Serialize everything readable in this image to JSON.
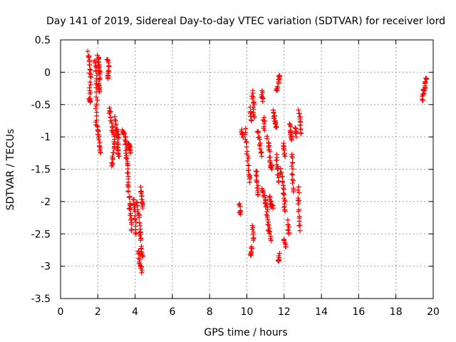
{
  "chart_data": {
    "type": "scatter",
    "title": "Day 141 of 2019, Sidereal Day-to-day VTEC variation (SDTVAR) for receiver lord",
    "xlabel": "GPS time / hours",
    "ylabel": "SDTVAR / TECUs",
    "xlim": [
      0,
      20
    ],
    "ylim": [
      -3.5,
      0.5
    ],
    "xticks": [
      0,
      2,
      4,
      6,
      8,
      10,
      12,
      14,
      16,
      18,
      20
    ],
    "yticks": [
      0.5,
      0,
      -0.5,
      -1,
      -1.5,
      -2,
      -2.5,
      -3,
      -3.5
    ],
    "xtick_labels": [
      "0",
      "2",
      "4",
      "6",
      "8",
      "10",
      "12",
      "14",
      "16",
      "18",
      "20"
    ],
    "ytick_labels": [
      "0.5",
      "0",
      "-0.5",
      "-1",
      "-1.5",
      "-2",
      "-2.5",
      "-3",
      "-3.5"
    ],
    "grid": true,
    "marker": "+",
    "series": [
      {
        "name": "SDTVAR",
        "color": "#ff0000",
        "tracks": [
          [
            [
              1.5,
              0.3
            ],
            [
              1.55,
              0.1
            ],
            [
              1.6,
              -0.1
            ],
            [
              1.55,
              -0.4
            ],
            [
              1.6,
              -0.45
            ]
          ],
          [
            [
              1.85,
              0.2
            ],
            [
              1.9,
              0.0
            ],
            [
              1.95,
              -0.3
            ],
            [
              1.9,
              -0.7
            ],
            [
              2.0,
              -0.9
            ],
            [
              2.1,
              -1.1
            ],
            [
              2.15,
              -1.25
            ]
          ],
          [
            [
              2.0,
              0.25
            ],
            [
              2.05,
              0.1
            ],
            [
              2.1,
              -0.05
            ],
            [
              2.05,
              -0.2
            ],
            [
              2.1,
              -0.3
            ]
          ],
          [
            [
              2.5,
              0.2
            ],
            [
              2.6,
              0.05
            ],
            [
              2.55,
              -0.1
            ]
          ],
          [
            [
              2.6,
              -0.55
            ],
            [
              2.7,
              -0.7
            ],
            [
              2.8,
              -0.9
            ],
            [
              2.9,
              -1.1
            ],
            [
              2.8,
              -1.3
            ],
            [
              2.75,
              -1.45
            ]
          ],
          [
            [
              2.9,
              -0.7
            ],
            [
              3.0,
              -0.9
            ],
            [
              3.1,
              -1.0
            ],
            [
              3.05,
              -1.2
            ],
            [
              3.15,
              -1.3
            ]
          ],
          [
            [
              3.3,
              -0.9
            ],
            [
              3.4,
              -0.95
            ]
          ],
          [
            [
              3.45,
              -1.0
            ],
            [
              3.5,
              -1.1
            ],
            [
              3.55,
              -1.3
            ],
            [
              3.6,
              -1.5
            ],
            [
              3.65,
              -1.75
            ],
            [
              3.7,
              -2.0
            ],
            [
              3.75,
              -2.2
            ],
            [
              3.8,
              -2.45
            ]
          ],
          [
            [
              3.6,
              -1.1
            ],
            [
              3.7,
              -1.15
            ],
            [
              3.75,
              -1.25
            ]
          ],
          [
            [
              3.9,
              -1.95
            ],
            [
              4.0,
              -2.2
            ],
            [
              4.05,
              -2.5
            ]
          ],
          [
            [
              4.1,
              -2.0
            ],
            [
              4.2,
              -2.2
            ],
            [
              4.25,
              -2.45
            ],
            [
              4.3,
              -2.6
            ]
          ],
          [
            [
              4.3,
              -1.8
            ],
            [
              4.35,
              -1.95
            ],
            [
              4.4,
              -2.1
            ]
          ],
          [
            [
              4.2,
              -2.75
            ],
            [
              4.25,
              -2.95
            ],
            [
              4.35,
              -3.1
            ]
          ],
          [
            [
              4.35,
              -2.7
            ],
            [
              4.4,
              -2.85
            ]
          ],
          [
            [
              9.6,
              -2.05
            ],
            [
              9.65,
              -2.2
            ]
          ],
          [
            [
              9.7,
              -0.9
            ],
            [
              9.8,
              -1.0
            ]
          ],
          [
            [
              9.9,
              -0.9
            ],
            [
              10.0,
              -1.2
            ],
            [
              10.1,
              -1.5
            ],
            [
              10.15,
              -1.7
            ]
          ],
          [
            [
              10.2,
              -0.55
            ],
            [
              10.25,
              -0.75
            ]
          ],
          [
            [
              10.2,
              -2.85
            ],
            [
              10.25,
              -2.7
            ]
          ],
          [
            [
              10.3,
              -2.4
            ],
            [
              10.35,
              -2.6
            ]
          ],
          [
            [
              10.3,
              -0.3
            ],
            [
              10.35,
              -0.5
            ],
            [
              10.4,
              -0.7
            ]
          ],
          [
            [
              10.5,
              -1.5
            ],
            [
              10.55,
              -1.7
            ],
            [
              10.6,
              -1.9
            ]
          ],
          [
            [
              10.6,
              -0.9
            ],
            [
              10.7,
              -1.1
            ],
            [
              10.8,
              -1.3
            ]
          ],
          [
            [
              10.8,
              -0.3
            ],
            [
              10.85,
              -0.45
            ]
          ],
          [
            [
              10.9,
              -0.7
            ],
            [
              10.95,
              -0.9
            ]
          ],
          [
            [
              10.85,
              -1.8
            ],
            [
              10.95,
              -1.95
            ],
            [
              11.05,
              -2.05
            ],
            [
              11.1,
              -2.25
            ],
            [
              11.2,
              -2.45
            ],
            [
              11.3,
              -2.6
            ]
          ],
          [
            [
              11.1,
              -1.0
            ],
            [
              11.2,
              -1.2
            ],
            [
              11.25,
              -1.4
            ],
            [
              11.35,
              -1.5
            ]
          ],
          [
            [
              11.2,
              -1.9
            ],
            [
              11.3,
              -2.05
            ],
            [
              11.4,
              -2.1
            ]
          ],
          [
            [
              11.4,
              -0.6
            ],
            [
              11.5,
              -0.75
            ],
            [
              11.6,
              -0.85
            ]
          ],
          [
            [
              11.6,
              -1.3
            ],
            [
              11.65,
              -1.5
            ],
            [
              11.7,
              -1.7
            ]
          ],
          [
            [
              11.6,
              -0.3
            ],
            [
              11.7,
              -0.15
            ],
            [
              11.75,
              -0.05
            ]
          ],
          [
            [
              11.7,
              -2.95
            ],
            [
              11.75,
              -2.8
            ]
          ],
          [
            [
              11.8,
              -1.5
            ],
            [
              11.9,
              -1.7
            ],
            [
              12.0,
              -1.95
            ],
            [
              12.05,
              -2.15
            ]
          ],
          [
            [
              11.95,
              -1.1
            ],
            [
              12.05,
              -1.3
            ]
          ],
          [
            [
              12.0,
              -2.6
            ],
            [
              12.1,
              -2.7
            ]
          ],
          [
            [
              12.2,
              -2.3
            ],
            [
              12.25,
              -2.5
            ]
          ],
          [
            [
              12.3,
              -0.8
            ],
            [
              12.35,
              -0.95
            ],
            [
              12.4,
              -1.05
            ]
          ],
          [
            [
              12.4,
              -1.25
            ],
            [
              12.45,
              -1.55
            ],
            [
              12.5,
              -1.85
            ]
          ],
          [
            [
              12.6,
              -0.85
            ],
            [
              12.65,
              -1.0
            ]
          ],
          [
            [
              12.8,
              -0.6
            ],
            [
              12.85,
              -0.75
            ],
            [
              12.9,
              -0.95
            ]
          ],
          [
            [
              12.75,
              -1.8
            ],
            [
              12.8,
              -2.1
            ],
            [
              12.85,
              -2.45
            ]
          ],
          [
            [
              19.4,
              -0.45
            ],
            [
              19.5,
              -0.3
            ],
            [
              19.55,
              -0.2
            ],
            [
              19.65,
              -0.1
            ]
          ]
        ]
      }
    ]
  }
}
